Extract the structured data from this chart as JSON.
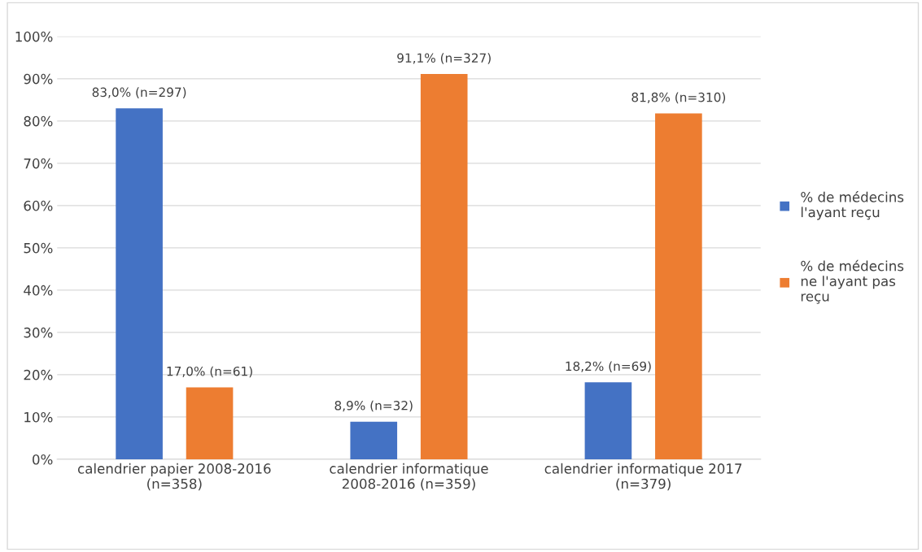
{
  "chart_data": {
    "type": "bar",
    "categories": [
      "calendrier papier 2008-2016 (n=358)",
      "calendrier informatique 2008-2016 (n=359)",
      "calendrier informatique 2017 (n=379)"
    ],
    "series": [
      {
        "name": "% de médecins l'ayant reçu",
        "color": "#4472c4",
        "values": [
          83.0,
          8.9,
          18.2
        ],
        "value_labels": [
          "83,0% (n=297)",
          "8,9% (n=32)",
          "18,2% (n=69)"
        ]
      },
      {
        "name": "% de médecins ne l'ayant pas reçu",
        "color": "#ed7d31",
        "values": [
          17.0,
          91.1,
          81.8
        ],
        "value_labels": [
          "17,0% (n=61)",
          "91,1% (n=327)",
          "81,8% (n=310)"
        ]
      }
    ],
    "ylim": [
      0,
      100
    ],
    "yticks": [
      {
        "value": 0,
        "label": "0%"
      },
      {
        "value": 10,
        "label": "10%"
      },
      {
        "value": 20,
        "label": "20%"
      },
      {
        "value": 30,
        "label": "30%"
      },
      {
        "value": 40,
        "label": "40%"
      },
      {
        "value": 50,
        "label": "50%"
      },
      {
        "value": 60,
        "label": "60%"
      },
      {
        "value": 70,
        "label": "70%"
      },
      {
        "value": 80,
        "label": "80%"
      },
      {
        "value": 90,
        "label": "90%"
      },
      {
        "value": 100,
        "label": "100%"
      }
    ],
    "grid": "y",
    "legend": "right"
  }
}
